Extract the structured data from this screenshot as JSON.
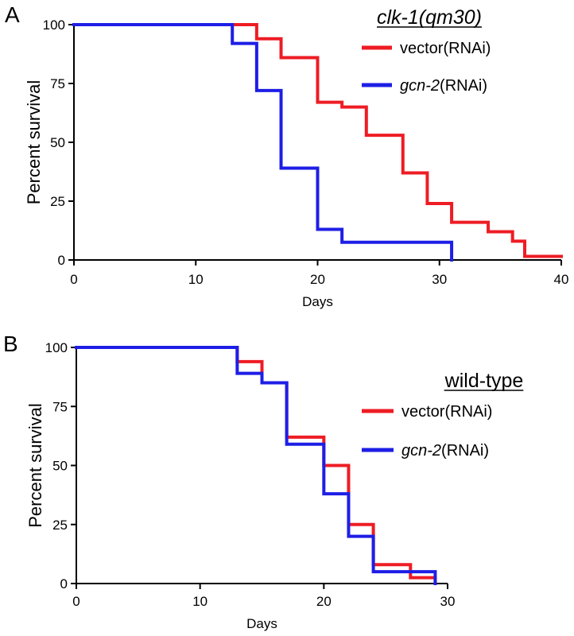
{
  "chart_data": [
    {
      "type": "line",
      "panel_label": "A",
      "legend_title": "clk-1(qm30)",
      "legend_title_italic": true,
      "legend_placement": "top-right",
      "xlabel": "Days",
      "ylabel": "Percent survival",
      "xlim": [
        0,
        40
      ],
      "ylim": [
        0,
        100
      ],
      "x_ticks": [
        0,
        10,
        20,
        30,
        40
      ],
      "y_ticks": [
        0,
        25,
        50,
        75,
        100
      ],
      "grid": false,
      "series": [
        {
          "name": "vector(RNAi)",
          "name_parts": [
            {
              "text": "vector",
              "italic": false
            },
            {
              "text": "(RNAi)",
              "italic": false
            }
          ],
          "color": "#ee1c24",
          "step": true,
          "x": [
            0,
            15,
            17,
            20,
            22,
            24,
            27,
            29,
            31,
            34,
            36,
            37,
            40
          ],
          "y": [
            100,
            94,
            86,
            67,
            65,
            53,
            37,
            24,
            16,
            12,
            8,
            1.5,
            1.5
          ]
        },
        {
          "name": "gcn-2(RNAi)",
          "name_parts": [
            {
              "text": "gcn-2",
              "italic": true
            },
            {
              "text": "(RNAi)",
              "italic": false
            }
          ],
          "color": "#1e1ee6",
          "step": true,
          "x": [
            0,
            13,
            15,
            17,
            20,
            22,
            31
          ],
          "y": [
            100,
            92,
            72,
            39,
            13,
            7.5,
            0
          ]
        }
      ]
    },
    {
      "type": "line",
      "panel_label": "B",
      "legend_title": "wild-type",
      "legend_title_italic": false,
      "legend_placement": "top-right",
      "xlabel": "Days",
      "ylabel": "Percent survival",
      "xlim": [
        0,
        30
      ],
      "ylim": [
        0,
        100
      ],
      "x_ticks": [
        0,
        10,
        20,
        30
      ],
      "y_ticks": [
        0,
        25,
        50,
        75,
        100
      ],
      "grid": false,
      "series": [
        {
          "name": "vector(RNAi)",
          "name_parts": [
            {
              "text": "vector",
              "italic": false
            },
            {
              "text": "(RNAi)",
              "italic": false
            }
          ],
          "color": "#ee1c24",
          "step": true,
          "x": [
            0,
            13,
            15,
            17,
            20,
            22,
            24,
            27,
            29
          ],
          "y": [
            100,
            94,
            85,
            62,
            50,
            25,
            8,
            2.5,
            0
          ]
        },
        {
          "name": "gcn-2(RNAi)",
          "name_parts": [
            {
              "text": "gcn-2",
              "italic": true
            },
            {
              "text": "(RNAi)",
              "italic": false
            }
          ],
          "color": "#1e1ee6",
          "step": true,
          "x": [
            0,
            13,
            15,
            17,
            20,
            22,
            24,
            29
          ],
          "y": [
            100,
            89,
            85,
            59,
            38,
            20,
            5,
            0
          ]
        }
      ]
    }
  ]
}
